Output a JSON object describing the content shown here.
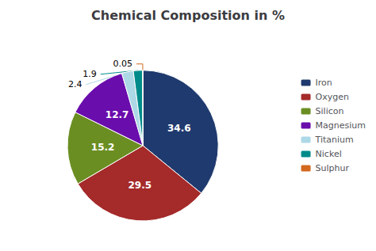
{
  "chart_data": {
    "type": "pie",
    "title": "Chemical Composition in %",
    "categories": [
      "Iron",
      "Oxygen",
      "Silicon",
      "Magnesium",
      "Titanium",
      "Nickel",
      "Sulphur"
    ],
    "values": [
      34.6,
      29.5,
      15.2,
      12.7,
      2.4,
      1.9,
      0.05
    ],
    "colors": [
      "#1F3A6E",
      "#A52A2A",
      "#6B8E23",
      "#6A0DAD",
      "#ADD8E6",
      "#008B8B",
      "#D2691E"
    ],
    "data_labels": true,
    "legend": "right"
  }
}
